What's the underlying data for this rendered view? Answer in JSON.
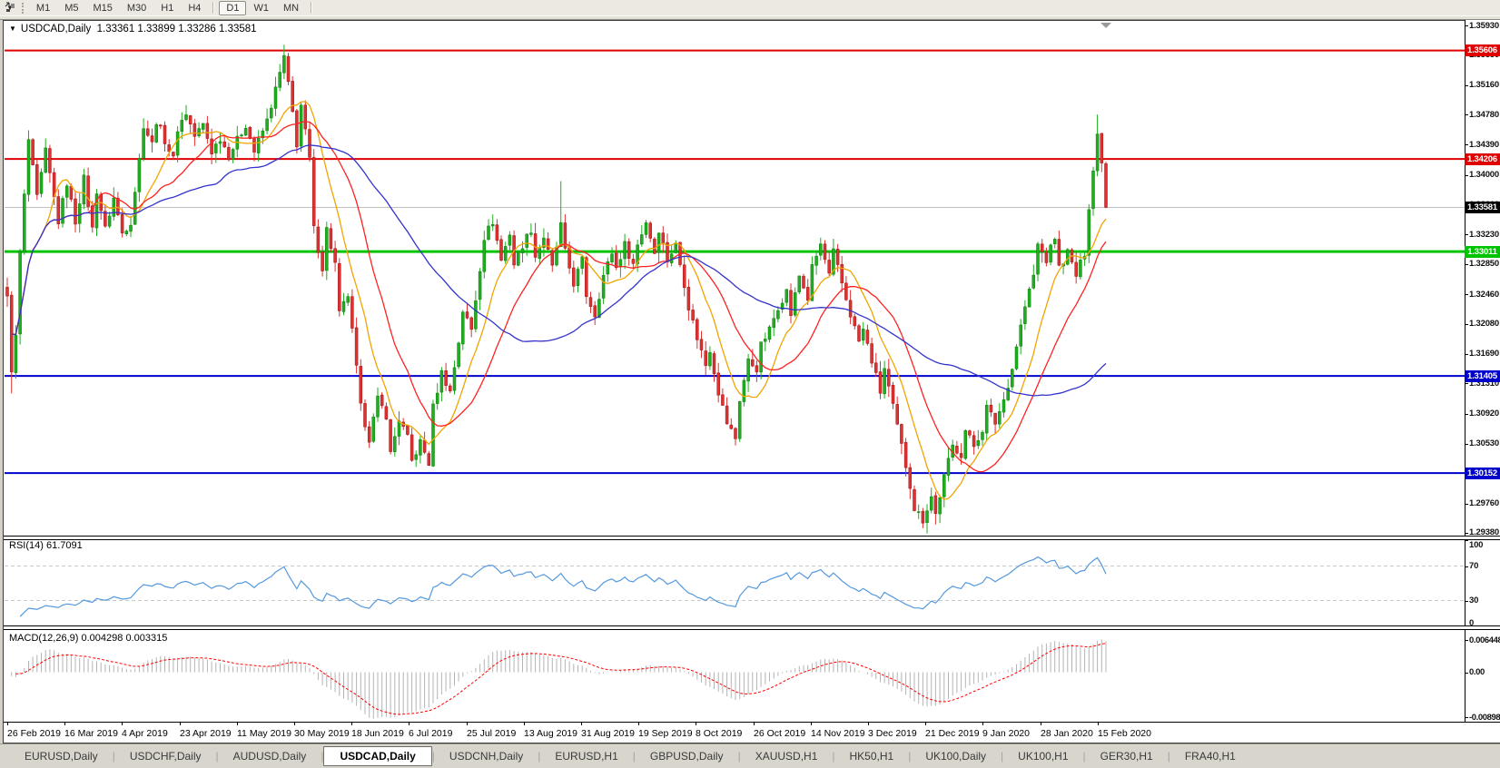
{
  "toolbar": {
    "timeframes": [
      "M1",
      "M5",
      "M15",
      "M30",
      "H1",
      "H4",
      "D1",
      "W1",
      "MN"
    ],
    "active_timeframe": "D1",
    "icon": "timeframes-icon",
    "dropdown": "chevron-down"
  },
  "chart": {
    "symbol": "USDCAD,Daily",
    "quote_open": "1.33361",
    "quote_high": "1.33899",
    "quote_low": "1.33286",
    "quote_close": "1.33581"
  },
  "indicators": {
    "rsi": {
      "label": "RSI(14)",
      "value": "61.7091",
      "axis_labels": [
        "100",
        "70",
        "30",
        "0"
      ]
    },
    "macd": {
      "label": "MACD(12,26,9)",
      "main_value": "0.004298",
      "signal_value": "0.003315",
      "axis_labels": [
        "0.006448",
        "0.00",
        "-0.008984"
      ]
    }
  },
  "price_axis": {
    "ticks": [
      "1.35930",
      "1.35550",
      "1.35160",
      "1.34780",
      "1.34390",
      "1.34000",
      "1.33610",
      "1.33230",
      "1.32850",
      "1.32460",
      "1.32080",
      "1.31690",
      "1.31310",
      "1.30920",
      "1.30530",
      "1.30140",
      "1.29760",
      "1.29380"
    ],
    "badges": [
      {
        "text": "1.35606",
        "price": 1.35606,
        "color": "#e00000"
      },
      {
        "text": "1.34206",
        "price": 1.34206,
        "color": "#e00000"
      },
      {
        "text": "1.33581",
        "price": 1.33581,
        "color": "#000000"
      },
      {
        "text": "1.33011",
        "price": 1.33011,
        "color": "#00c400"
      },
      {
        "text": "1.31405",
        "price": 1.31405,
        "color": "#0000cd"
      },
      {
        "text": "1.30152",
        "price": 1.30152,
        "color": "#0000cd"
      }
    ]
  },
  "chart_data": {
    "type": "candlestick",
    "instrument": "USDCAD",
    "timeframe": "Daily",
    "title": "USDCAD,Daily  1.33361 1.33899 1.33286 1.33581",
    "y_range": [
      1.29345,
      1.36
    ],
    "x_labels": [
      "26 Feb 2019",
      "16 Mar 2019",
      "4 Apr 2019",
      "23 Apr 2019",
      "11 May 2019",
      "30 May 2019",
      "18 Jun 2019",
      "6 Jul 2019",
      "25 Jul 2019",
      "13 Aug 2019",
      "31 Aug 2019",
      "19 Sep 2019",
      "8 Oct 2019",
      "26 Oct 2019",
      "14 Nov 2019",
      "3 Dec 2019",
      "21 Dec 2019",
      "9 Jan 2020",
      "28 Jan 2020",
      "15 Feb 2020"
    ],
    "horizontal_lines": [
      {
        "price": 1.35606,
        "color": "#e00000",
        "width": 2,
        "role": "resistance"
      },
      {
        "price": 1.34206,
        "color": "#e00000",
        "width": 2,
        "role": "resistance"
      },
      {
        "price": 1.33581,
        "color": "#c0c0c0",
        "width": 1,
        "role": "current-price"
      },
      {
        "price": 1.33011,
        "color": "#00c400",
        "width": 3,
        "role": "pivot"
      },
      {
        "price": 1.31405,
        "color": "#0000cd",
        "width": 2,
        "role": "support"
      },
      {
        "price": 1.30152,
        "color": "#0000cd",
        "width": 2,
        "role": "support"
      }
    ],
    "last_close": 1.33581,
    "bars_count": 259,
    "price_path_anchors": [
      [
        0,
        1.324
      ],
      [
        1,
        1.315
      ],
      [
        2,
        1.319
      ],
      [
        3,
        1.33
      ],
      [
        5,
        1.3445
      ],
      [
        7,
        1.337
      ],
      [
        9,
        1.343
      ],
      [
        12,
        1.334
      ],
      [
        14,
        1.339
      ],
      [
        16,
        1.334
      ],
      [
        18,
        1.3395
      ],
      [
        20,
        1.333
      ],
      [
        21,
        1.338
      ],
      [
        23,
        1.333
      ],
      [
        25,
        1.337
      ],
      [
        27,
        1.3325
      ],
      [
        29,
        1.334
      ],
      [
        31,
        1.342
      ],
      [
        32,
        1.3465
      ],
      [
        34,
        1.344
      ],
      [
        35,
        1.347
      ],
      [
        37,
        1.3445
      ],
      [
        39,
        1.342
      ],
      [
        40,
        1.346
      ],
      [
        42,
        1.348
      ],
      [
        44,
        1.345
      ],
      [
        46,
        1.3465
      ],
      [
        48,
        1.343
      ],
      [
        50,
        1.3448
      ],
      [
        52,
        1.3425
      ],
      [
        54,
        1.3445
      ],
      [
        56,
        1.3465
      ],
      [
        58,
        1.343
      ],
      [
        61,
        1.347
      ],
      [
        63,
        1.351
      ],
      [
        65,
        1.3552
      ],
      [
        67,
        1.348
      ],
      [
        68,
        1.344
      ],
      [
        69,
        1.349
      ],
      [
        71,
        1.342
      ],
      [
        72,
        1.333
      ],
      [
        74,
        1.328
      ],
      [
        75,
        1.333
      ],
      [
        77,
        1.3285
      ],
      [
        78,
        1.322
      ],
      [
        80,
        1.3245
      ],
      [
        82,
        1.315
      ],
      [
        83,
        1.31
      ],
      [
        85,
        1.306
      ],
      [
        87,
        1.311
      ],
      [
        89,
        1.309
      ],
      [
        90,
        1.304
      ],
      [
        92,
        1.3085
      ],
      [
        94,
        1.306
      ],
      [
        95,
        1.303
      ],
      [
        97,
        1.3055
      ],
      [
        99,
        1.3028
      ],
      [
        100,
        1.31
      ],
      [
        102,
        1.3145
      ],
      [
        104,
        1.312
      ],
      [
        106,
        1.3185
      ],
      [
        107,
        1.3225
      ],
      [
        109,
        1.32
      ],
      [
        111,
        1.328
      ],
      [
        112,
        1.332
      ],
      [
        114,
        1.334
      ],
      [
        116,
        1.329
      ],
      [
        118,
        1.3325
      ],
      [
        119,
        1.3285
      ],
      [
        121,
        1.331
      ],
      [
        123,
        1.333
      ],
      [
        124,
        1.3295
      ],
      [
        126,
        1.332
      ],
      [
        128,
        1.328
      ],
      [
        130,
        1.3335
      ],
      [
        131,
        1.33
      ],
      [
        133,
        1.326
      ],
      [
        135,
        1.329
      ],
      [
        136,
        1.3245
      ],
      [
        138,
        1.322
      ],
      [
        140,
        1.327
      ],
      [
        142,
        1.33
      ],
      [
        143,
        1.328
      ],
      [
        145,
        1.331
      ],
      [
        147,
        1.3285
      ],
      [
        148,
        1.331
      ],
      [
        150,
        1.334
      ],
      [
        152,
        1.33
      ],
      [
        153,
        1.333
      ],
      [
        155,
        1.329
      ],
      [
        157,
        1.331
      ],
      [
        159,
        1.326
      ],
      [
        160,
        1.323
      ],
      [
        162,
        1.319
      ],
      [
        164,
        1.3155
      ],
      [
        165,
        1.3175
      ],
      [
        167,
        1.312
      ],
      [
        169,
        1.308
      ],
      [
        171,
        1.306
      ],
      [
        172,
        1.311
      ],
      [
        174,
        1.316
      ],
      [
        176,
        1.315
      ],
      [
        177,
        1.318
      ],
      [
        179,
        1.32
      ],
      [
        181,
        1.323
      ],
      [
        183,
        1.325
      ],
      [
        184,
        1.322
      ],
      [
        186,
        1.327
      ],
      [
        188,
        1.324
      ],
      [
        189,
        1.328
      ],
      [
        191,
        1.331
      ],
      [
        193,
        1.327
      ],
      [
        194,
        1.33
      ],
      [
        196,
        1.326
      ],
      [
        198,
        1.322
      ],
      [
        200,
        1.3185
      ],
      [
        201,
        1.32
      ],
      [
        203,
        1.316
      ],
      [
        205,
        1.312
      ],
      [
        206,
        1.315
      ],
      [
        208,
        1.31
      ],
      [
        210,
        1.305
      ],
      [
        212,
        1.3
      ],
      [
        213,
        1.297
      ],
      [
        215,
        1.2955
      ],
      [
        217,
        1.2985
      ],
      [
        218,
        1.2962
      ],
      [
        220,
        1.301
      ],
      [
        222,
        1.305
      ],
      [
        224,
        1.304
      ],
      [
        225,
        1.307
      ],
      [
        227,
        1.305
      ],
      [
        229,
        1.3072
      ],
      [
        230,
        1.31
      ],
      [
        232,
        1.308
      ],
      [
        234,
        1.311
      ],
      [
        236,
        1.315
      ],
      [
        237,
        1.318
      ],
      [
        239,
        1.323
      ],
      [
        241,
        1.327
      ],
      [
        242,
        1.331
      ],
      [
        244,
        1.329
      ],
      [
        246,
        1.332
      ],
      [
        247,
        1.328
      ],
      [
        249,
        1.33
      ],
      [
        251,
        1.327
      ],
      [
        253,
        1.33
      ],
      [
        254,
        1.336
      ],
      [
        256,
        1.3452
      ],
      [
        257,
        1.342
      ],
      [
        258,
        1.33581
      ]
    ],
    "wick_overrides": {
      "1": {
        "low": 1.3118
      },
      "65": {
        "high": 1.3568
      },
      "130": {
        "high": 1.3392
      },
      "215": {
        "low": 1.2944
      },
      "256": {
        "high": 1.3478
      }
    },
    "moving_averages": [
      {
        "period": 10,
        "color": "#f0a500"
      },
      {
        "period": 20,
        "color": "#ff2222"
      },
      {
        "period": 50,
        "color": "#3333cc"
      }
    ],
    "rsi": {
      "period": 14,
      "last": 61.7091,
      "levels": [
        70,
        30
      ],
      "scale": [
        0,
        100
      ]
    },
    "macd": {
      "fast": 12,
      "slow": 26,
      "signal": 9,
      "last_main": 0.004298,
      "last_signal": 0.003315,
      "axis_max": 0.006448,
      "axis_min": -0.008984
    }
  },
  "tab_bar": {
    "tabs": [
      {
        "label": "EURUSD,Daily",
        "active": false
      },
      {
        "label": "USDCHF,Daily",
        "active": false
      },
      {
        "label": "AUDUSD,Daily",
        "active": false
      },
      {
        "label": "USDCAD,Daily",
        "active": true
      },
      {
        "label": "USDCNH,Daily",
        "active": false
      },
      {
        "label": "EURUSD,H1",
        "active": false
      },
      {
        "label": "GBPUSD,Daily",
        "active": false
      },
      {
        "label": "XAUUSD,H1",
        "active": false
      },
      {
        "label": "HK50,H1",
        "active": false
      },
      {
        "label": "UK100,Daily",
        "active": false
      },
      {
        "label": "UK100,H1",
        "active": false
      },
      {
        "label": "GER30,H1",
        "active": false
      },
      {
        "label": "FRA40,H1",
        "active": false
      }
    ]
  },
  "colors": {
    "candle_up": "#1fae1f",
    "candle_down": "#e03131",
    "rsi_line": "#5599dd",
    "macd_hist": "#b4b4b4",
    "macd_signal": "#ff0000",
    "level_dashed": "#c8c8c8",
    "shift_marker": "#9a9a9a"
  }
}
